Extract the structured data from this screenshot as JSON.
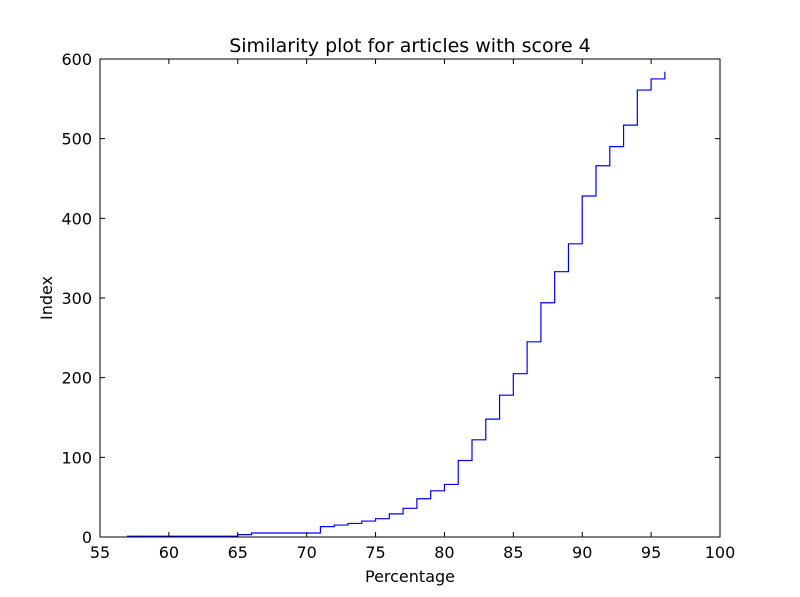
{
  "chart_data": {
    "type": "line",
    "drawstyle": "steps-post",
    "title": "Similarity plot for articles with score 4",
    "xlabel": "Percentage",
    "ylabel": "Index",
    "xlim": [
      55,
      100
    ],
    "ylim": [
      0,
      600
    ],
    "xticks": [
      55,
      60,
      65,
      70,
      75,
      80,
      85,
      90,
      95,
      100
    ],
    "yticks": [
      0,
      100,
      200,
      300,
      400,
      500,
      600
    ],
    "grid": false,
    "line_color": "#0000ff",
    "series": [
      {
        "points": [
          [
            57,
            0
          ],
          [
            57,
            1
          ],
          [
            65,
            3
          ],
          [
            66,
            5
          ],
          [
            71,
            8
          ],
          [
            71,
            13
          ],
          [
            72,
            15
          ],
          [
            73,
            17
          ],
          [
            74,
            20
          ],
          [
            75,
            23
          ],
          [
            76,
            29
          ],
          [
            77,
            36
          ],
          [
            78,
            48
          ],
          [
            79,
            58
          ],
          [
            80,
            66
          ],
          [
            81,
            96
          ],
          [
            82,
            122
          ],
          [
            83,
            148
          ],
          [
            84,
            178
          ],
          [
            85,
            205
          ],
          [
            86,
            245
          ],
          [
            87,
            294
          ],
          [
            88,
            333
          ],
          [
            89,
            368
          ],
          [
            90,
            428
          ],
          [
            91,
            466
          ],
          [
            92,
            490
          ],
          [
            93,
            517
          ],
          [
            94,
            561
          ],
          [
            95,
            575
          ],
          [
            96,
            577
          ],
          [
            96,
            584
          ]
        ]
      }
    ]
  }
}
